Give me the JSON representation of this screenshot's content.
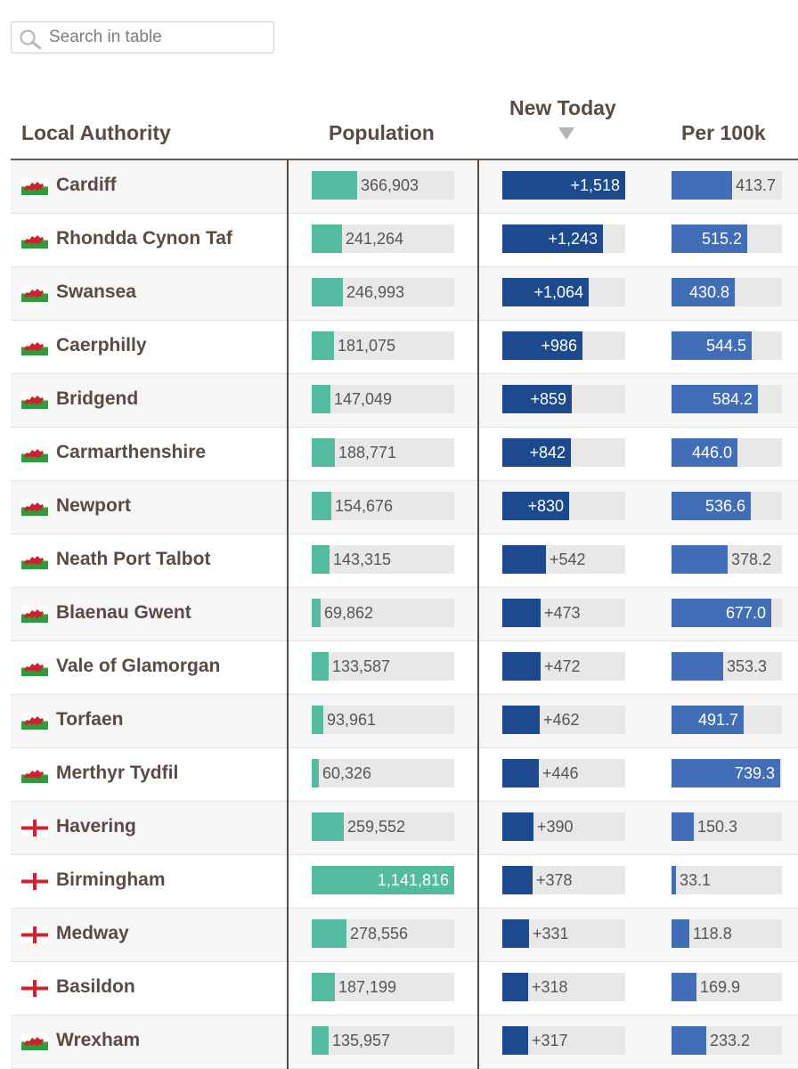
{
  "search": {
    "placeholder": "Search in table"
  },
  "headers": {
    "authority": "Local Authority",
    "population": "Population",
    "new_today": "New Today",
    "per_100k": "Per 100k"
  },
  "colors": {
    "population": "#54bba0",
    "new_today": "#1c4a8c",
    "per_100k": "#426eb8",
    "track": "#e8e8e8"
  },
  "scales": {
    "population_max": 1141816,
    "new_today_max": 1518,
    "per_100k_max": 750
  },
  "rows": [
    {
      "flag": "wales-flag-icon",
      "name": "Cardiff",
      "population": 366903,
      "population_label": "366,903",
      "new_today": 1518,
      "new_today_label": "+1,518",
      "per_100k": 413.7,
      "per_100k_label": "413.7"
    },
    {
      "flag": "wales-flag-icon",
      "name": "Rhondda Cynon Taf",
      "population": 241264,
      "population_label": "241,264",
      "new_today": 1243,
      "new_today_label": "+1,243",
      "per_100k": 515.2,
      "per_100k_label": "515.2"
    },
    {
      "flag": "wales-flag-icon",
      "name": "Swansea",
      "population": 246993,
      "population_label": "246,993",
      "new_today": 1064,
      "new_today_label": "+1,064",
      "per_100k": 430.8,
      "per_100k_label": "430.8"
    },
    {
      "flag": "wales-flag-icon",
      "name": "Caerphilly",
      "population": 181075,
      "population_label": "181,075",
      "new_today": 986,
      "new_today_label": "+986",
      "per_100k": 544.5,
      "per_100k_label": "544.5"
    },
    {
      "flag": "wales-flag-icon",
      "name": "Bridgend",
      "population": 147049,
      "population_label": "147,049",
      "new_today": 859,
      "new_today_label": "+859",
      "per_100k": 584.2,
      "per_100k_label": "584.2"
    },
    {
      "flag": "wales-flag-icon",
      "name": "Carmarthenshire",
      "population": 188771,
      "population_label": "188,771",
      "new_today": 842,
      "new_today_label": "+842",
      "per_100k": 446.0,
      "per_100k_label": "446.0"
    },
    {
      "flag": "wales-flag-icon",
      "name": "Newport",
      "population": 154676,
      "population_label": "154,676",
      "new_today": 830,
      "new_today_label": "+830",
      "per_100k": 536.6,
      "per_100k_label": "536.6"
    },
    {
      "flag": "wales-flag-icon",
      "name": "Neath Port Talbot",
      "population": 143315,
      "population_label": "143,315",
      "new_today": 542,
      "new_today_label": "+542",
      "per_100k": 378.2,
      "per_100k_label": "378.2"
    },
    {
      "flag": "wales-flag-icon",
      "name": "Blaenau Gwent",
      "population": 69862,
      "population_label": "69,862",
      "new_today": 473,
      "new_today_label": "+473",
      "per_100k": 677.0,
      "per_100k_label": "677.0"
    },
    {
      "flag": "wales-flag-icon",
      "name": "Vale of Glamorgan",
      "population": 133587,
      "population_label": "133,587",
      "new_today": 472,
      "new_today_label": "+472",
      "per_100k": 353.3,
      "per_100k_label": "353.3"
    },
    {
      "flag": "wales-flag-icon",
      "name": "Torfaen",
      "population": 93961,
      "population_label": "93,961",
      "new_today": 462,
      "new_today_label": "+462",
      "per_100k": 491.7,
      "per_100k_label": "491.7"
    },
    {
      "flag": "wales-flag-icon",
      "name": "Merthyr Tydfil",
      "population": 60326,
      "population_label": "60,326",
      "new_today": 446,
      "new_today_label": "+446",
      "per_100k": 739.3,
      "per_100k_label": "739.3"
    },
    {
      "flag": "england-flag-icon",
      "name": "Havering",
      "population": 259552,
      "population_label": "259,552",
      "new_today": 390,
      "new_today_label": "+390",
      "per_100k": 150.3,
      "per_100k_label": "150.3"
    },
    {
      "flag": "england-flag-icon",
      "name": "Birmingham",
      "population": 1141816,
      "population_label": "1,141,816",
      "new_today": 378,
      "new_today_label": "+378",
      "per_100k": 33.1,
      "per_100k_label": "33.1"
    },
    {
      "flag": "england-flag-icon",
      "name": "Medway",
      "population": 278556,
      "population_label": "278,556",
      "new_today": 331,
      "new_today_label": "+331",
      "per_100k": 118.8,
      "per_100k_label": "118.8"
    },
    {
      "flag": "england-flag-icon",
      "name": "Basildon",
      "population": 187199,
      "population_label": "187,199",
      "new_today": 318,
      "new_today_label": "+318",
      "per_100k": 169.9,
      "per_100k_label": "169.9"
    },
    {
      "flag": "wales-flag-icon",
      "name": "Wrexham",
      "population": 135957,
      "population_label": "135,957",
      "new_today": 317,
      "new_today_label": "+317",
      "per_100k": 233.2,
      "per_100k_label": "233.2"
    }
  ]
}
